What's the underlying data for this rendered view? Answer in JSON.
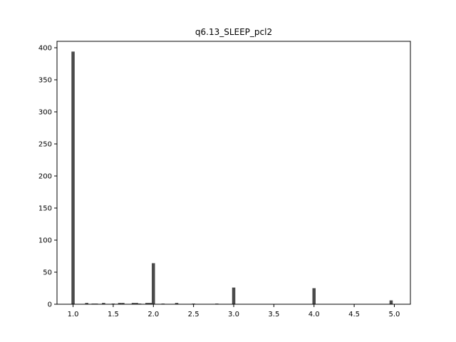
{
  "chart_data": {
    "type": "bar",
    "title": "q6.13_SLEEP_pcl2",
    "xlabel": "",
    "ylabel": "",
    "xlim": [
      0.8,
      5.2
    ],
    "ylim": [
      0,
      410
    ],
    "bin_width": 0.04,
    "grid": false,
    "colors": {
      "bar": "#4a4a4a",
      "axis": "#000000",
      "background": "#ffffff"
    },
    "x_ticks": [
      1.0,
      1.5,
      2.0,
      2.5,
      3.0,
      3.5,
      4.0,
      4.5,
      5.0
    ],
    "x_tick_labels": [
      "1.0",
      "1.5",
      "2.0",
      "2.5",
      "3.0",
      "3.5",
      "4.0",
      "4.5",
      "5.0"
    ],
    "y_ticks": [
      0,
      50,
      100,
      150,
      200,
      250,
      300,
      350,
      400
    ],
    "y_tick_labels": [
      "0",
      "50",
      "100",
      "150",
      "200",
      "250",
      "300",
      "350",
      "400"
    ],
    "bars": [
      {
        "x": 1.0,
        "value": 394
      },
      {
        "x": 1.17,
        "value": 2
      },
      {
        "x": 1.25,
        "value": 1
      },
      {
        "x": 1.29,
        "value": 1
      },
      {
        "x": 1.38,
        "value": 2
      },
      {
        "x": 1.5,
        "value": 1
      },
      {
        "x": 1.58,
        "value": 2
      },
      {
        "x": 1.62,
        "value": 2
      },
      {
        "x": 1.75,
        "value": 2
      },
      {
        "x": 1.79,
        "value": 2
      },
      {
        "x": 1.83,
        "value": 1
      },
      {
        "x": 1.92,
        "value": 2
      },
      {
        "x": 1.96,
        "value": 2
      },
      {
        "x": 2.0,
        "value": 64
      },
      {
        "x": 2.12,
        "value": 1
      },
      {
        "x": 2.29,
        "value": 2
      },
      {
        "x": 2.5,
        "value": 1
      },
      {
        "x": 2.79,
        "value": 1
      },
      {
        "x": 3.0,
        "value": 26
      },
      {
        "x": 4.0,
        "value": 25
      },
      {
        "x": 4.96,
        "value": 6
      }
    ]
  }
}
